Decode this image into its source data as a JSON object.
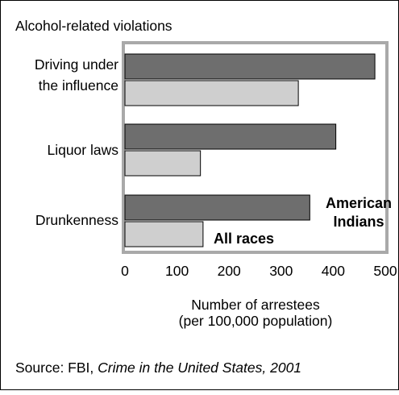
{
  "chart_data": {
    "type": "bar",
    "orientation": "horizontal",
    "title": "Alcohol-related violations",
    "categories": [
      [
        "Driving under",
        "the influence"
      ],
      [
        "Liquor laws"
      ],
      [
        "Drunkenness"
      ]
    ],
    "series": [
      {
        "name": "American Indians",
        "name_lines": [
          "American",
          "Indians"
        ],
        "values": [
          480,
          405,
          355
        ],
        "color": "#6e6e6e"
      },
      {
        "name": "All races",
        "name_lines": [
          "All races"
        ],
        "values": [
          333,
          145,
          150
        ],
        "color": "#cfcfcf"
      }
    ],
    "xticks": [
      0,
      100,
      200,
      300,
      400,
      500
    ],
    "xlim": [
      0,
      500
    ],
    "xlabel_lines": [
      "Number of arrestees",
      "(per 100,000 population)"
    ],
    "legend": "inline-labels",
    "grid": false
  },
  "source": {
    "prefix": "Source:  FBI, ",
    "title": "Crime in the United States, 2001"
  }
}
